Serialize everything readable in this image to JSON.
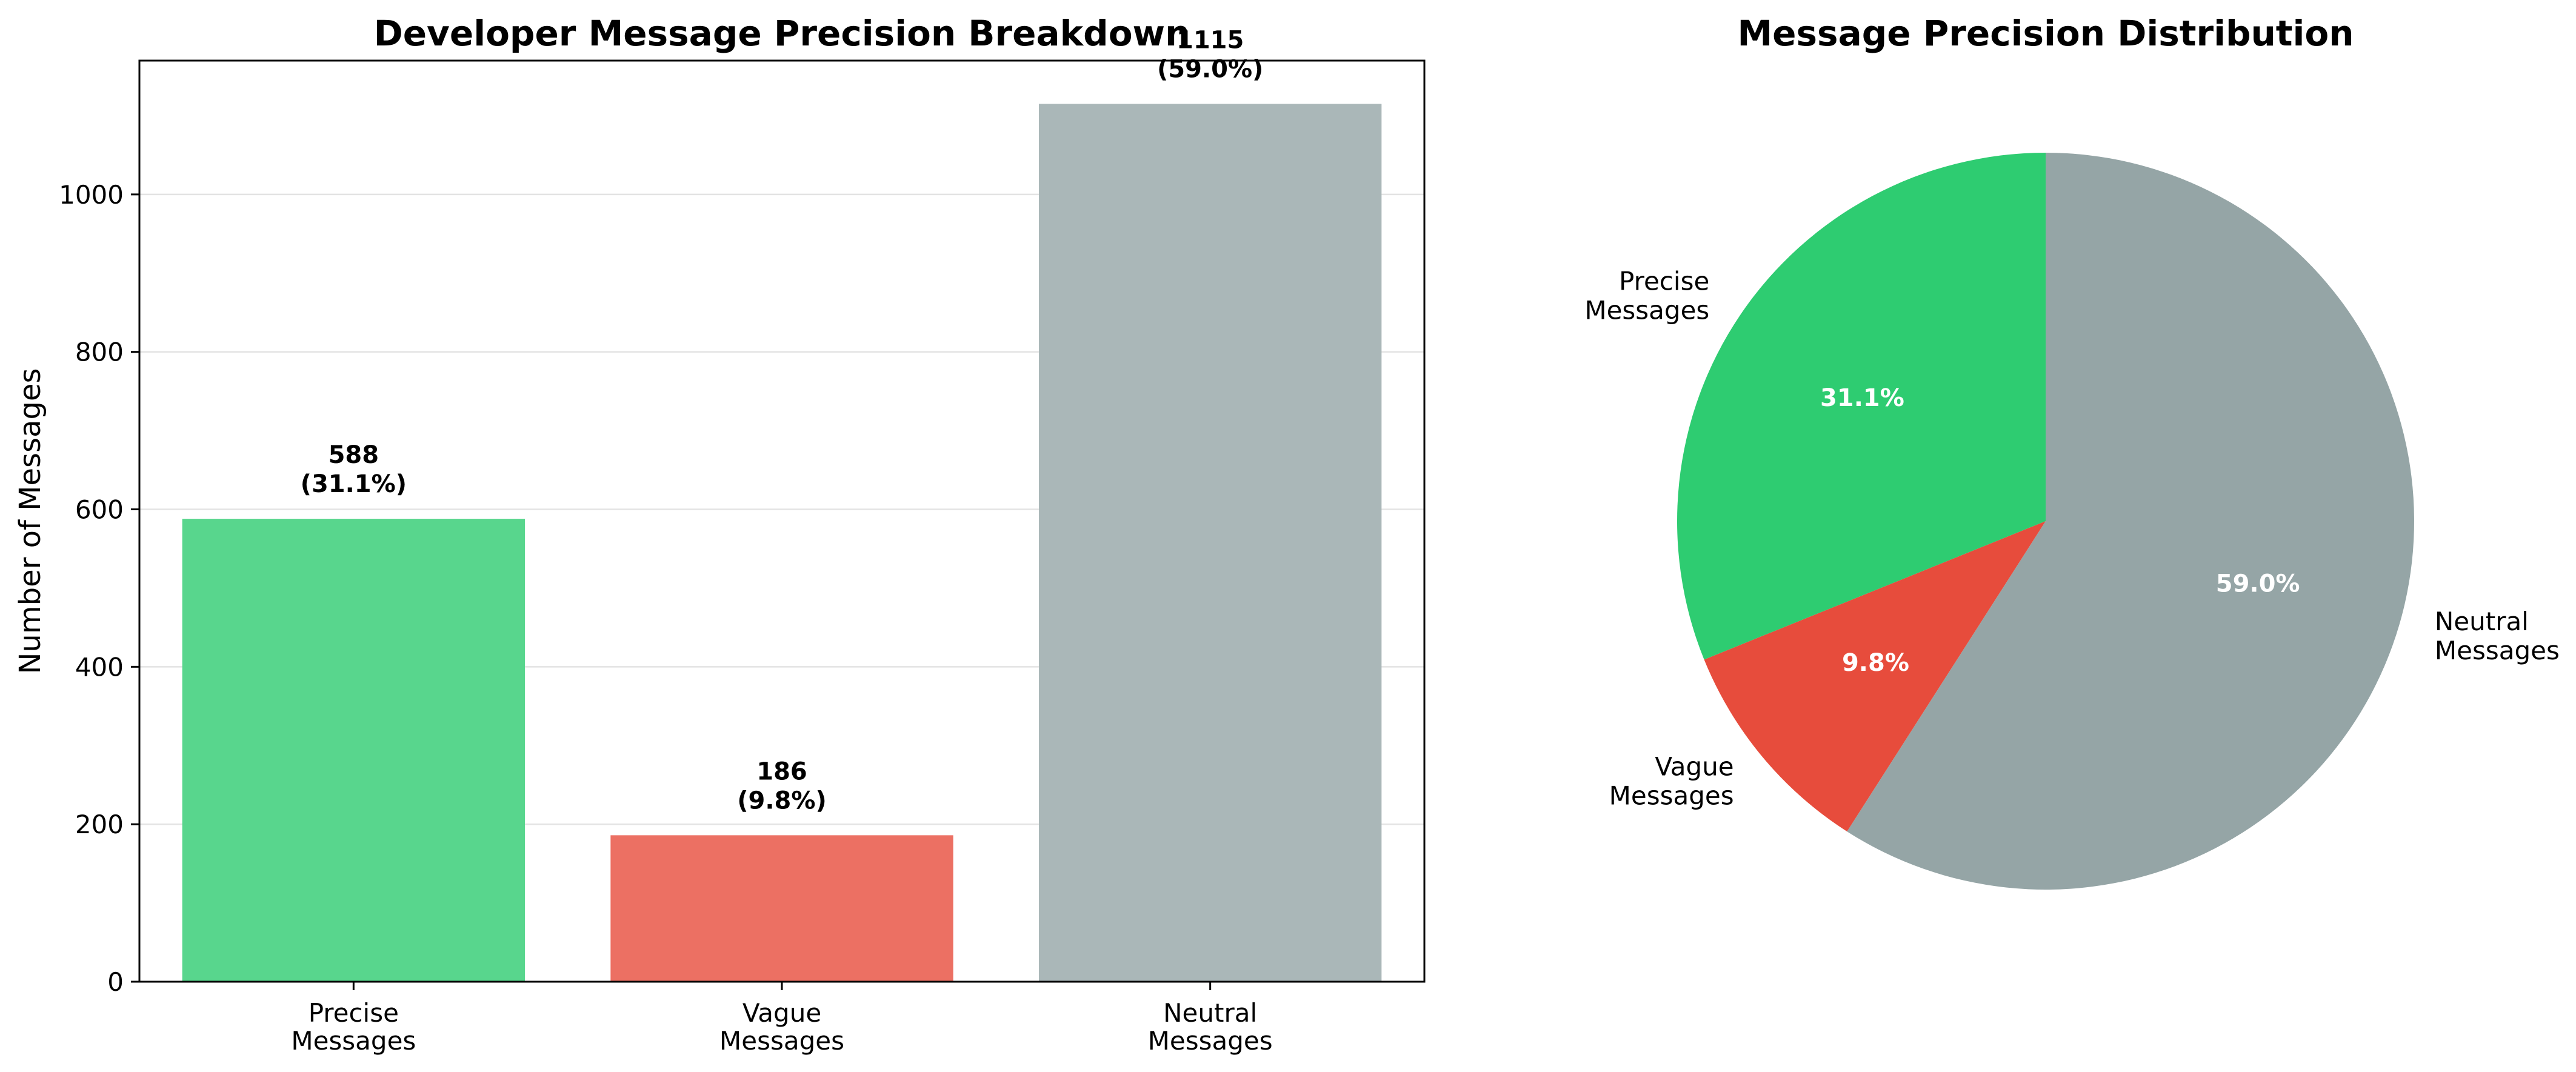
{
  "chart_data": [
    {
      "type": "bar",
      "title": "Developer Message Precision Breakdown",
      "ylabel": "Number of Messages",
      "xlabel": "",
      "categories": [
        [
          "Precise",
          "Messages"
        ],
        [
          "Vague",
          "Messages"
        ],
        [
          "Neutral",
          "Messages"
        ]
      ],
      "values": [
        588,
        186,
        1115
      ],
      "data_labels": [
        [
          "588",
          "(31.1%)"
        ],
        [
          "186",
          "(9.8%)"
        ],
        [
          "1115",
          "(59.0%)"
        ]
      ],
      "colors": [
        "#58d68d",
        "#ec7063",
        "#aab7b8"
      ],
      "ylim": [
        0,
        1170
      ],
      "yticks": [
        0,
        200,
        400,
        600,
        800,
        1000
      ],
      "grid": "y"
    },
    {
      "type": "pie",
      "title": "Message Precision Distribution",
      "labels": [
        [
          "Precise",
          "Messages"
        ],
        [
          "Vague",
          "Messages"
        ],
        [
          "Neutral",
          "Messages"
        ]
      ],
      "values": [
        31.1,
        9.8,
        59.0
      ],
      "pct_labels": [
        "31.1%",
        "9.8%",
        "59.0%"
      ],
      "colors": [
        "#2ecc71",
        "#e74c3c",
        "#95a5a6"
      ],
      "start_angle": 90,
      "direction": "counterclockwise"
    }
  ]
}
